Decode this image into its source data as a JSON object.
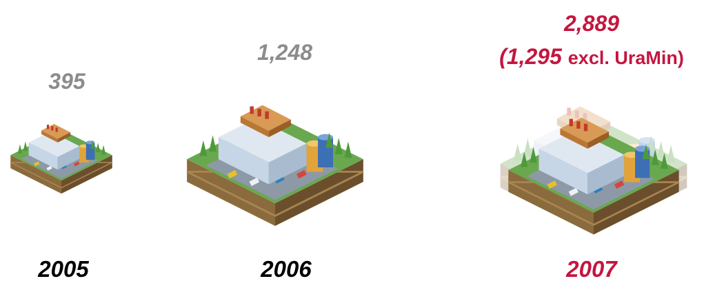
{
  "items": [
    {
      "value": "395",
      "year": "2005"
    },
    {
      "value": "1,248",
      "year": "2006"
    },
    {
      "value": "2,889",
      "year": "2007",
      "note": {
        "number": "(1,295",
        "text": "excl. UraMin)"
      }
    }
  ]
}
